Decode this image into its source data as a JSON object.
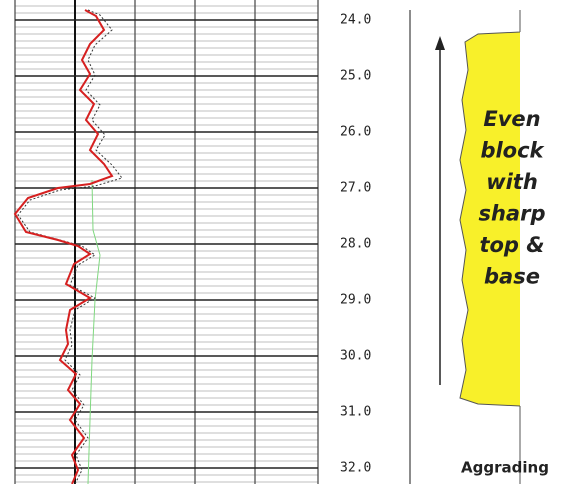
{
  "depth_labels": [
    "24.0",
    "25.0",
    "26.0",
    "27.0",
    "28.0",
    "29.0",
    "30.0",
    "31.0",
    "32.0"
  ],
  "annotation": [
    "Even",
    "block",
    "with",
    "sharp",
    "top &",
    "base"
  ],
  "caption": "Aggrading"
}
